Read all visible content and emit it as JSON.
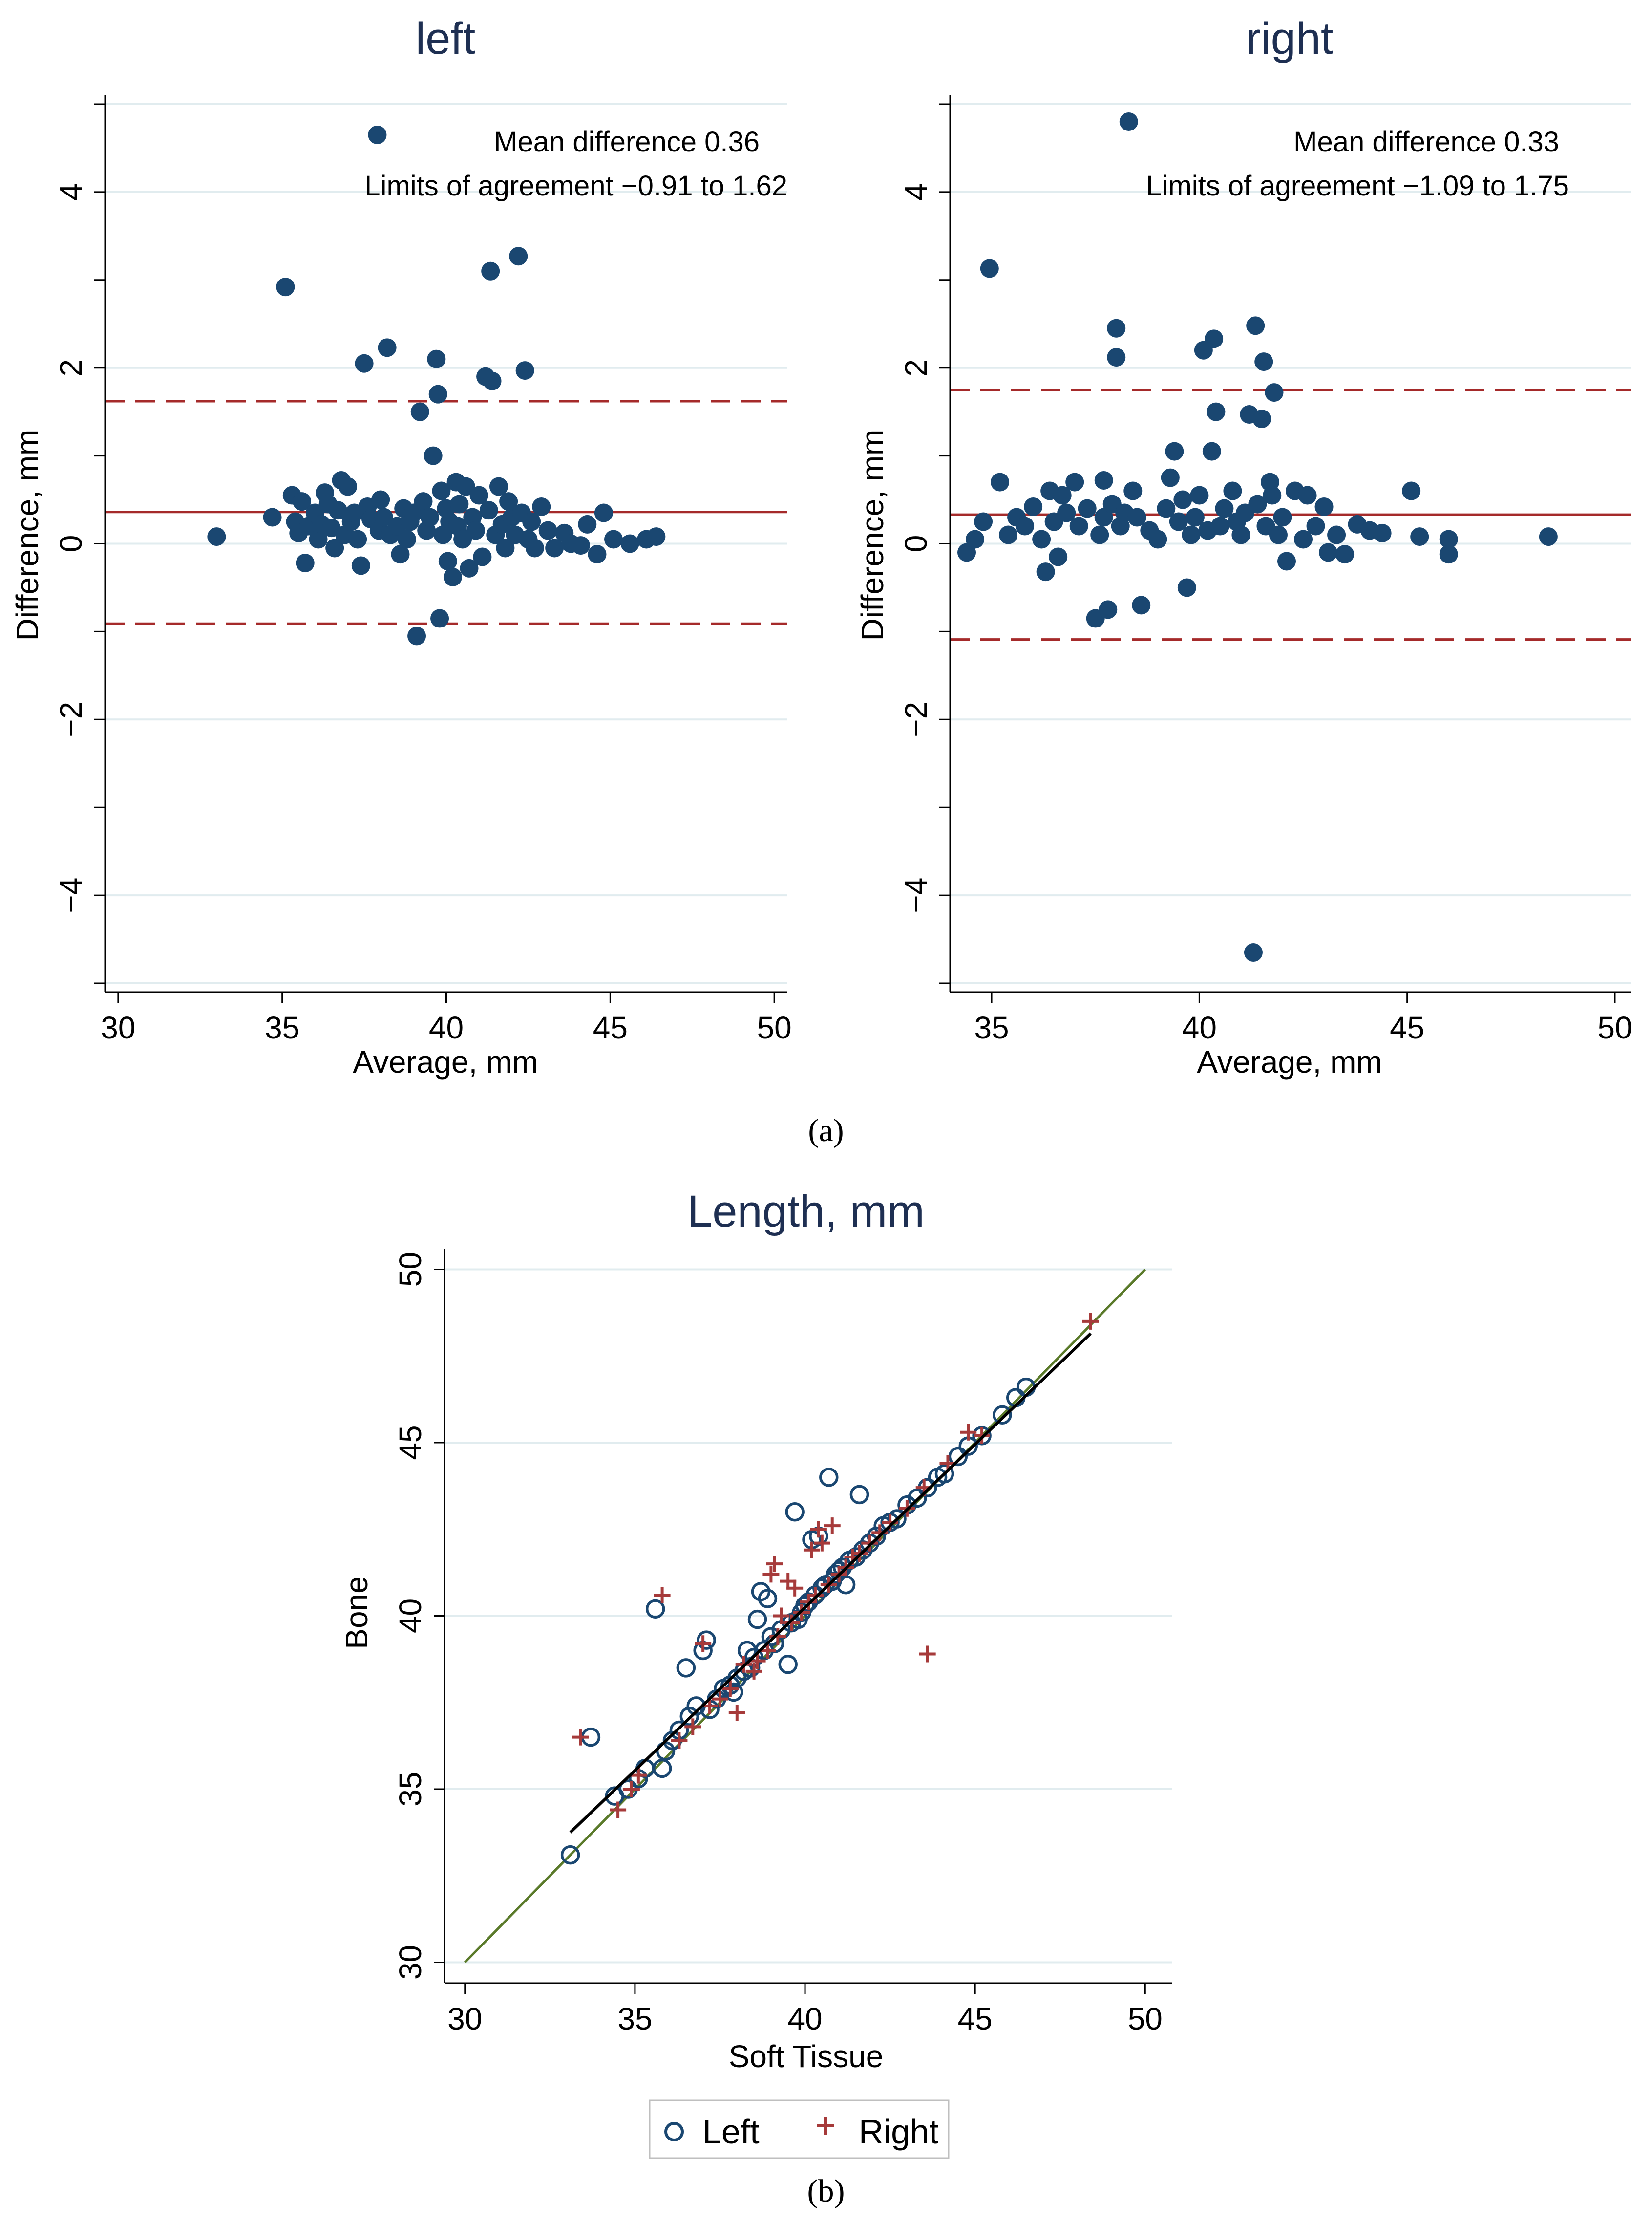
{
  "colors": {
    "point": "#1a4771",
    "ref_line": "#a52a2a",
    "grid": "#e1ecef",
    "identity": "#5a7a2a",
    "fit": "#000000",
    "right_marker": "#a63a3a"
  },
  "captions": {
    "a": "(a)",
    "b": "(b)"
  },
  "chart_data": [
    {
      "type": "scatter",
      "title": "left",
      "xlabel": "Average, mm",
      "ylabel": "Difference, mm",
      "xlim": [
        29.6,
        50.4
      ],
      "ylim": [
        -5.1,
        5.1
      ],
      "xticks": [
        30,
        35,
        40,
        45,
        50
      ],
      "yticks": [
        -4,
        -2,
        0,
        2,
        4
      ],
      "annotations": [
        "Mean difference 0.36",
        "Limits of agreement −0.91 to 1.62"
      ],
      "mean_difference": 0.36,
      "limits_of_agreement": [
        -0.91,
        1.62
      ],
      "points": [
        [
          33.0,
          0.08
        ],
        [
          34.7,
          0.3
        ],
        [
          35.1,
          2.92
        ],
        [
          35.3,
          0.55
        ],
        [
          35.4,
          0.25
        ],
        [
          35.5,
          0.12
        ],
        [
          35.6,
          0.48
        ],
        [
          35.7,
          -0.22
        ],
        [
          35.8,
          0.2
        ],
        [
          36.0,
          0.35
        ],
        [
          36.1,
          0.05
        ],
        [
          36.2,
          0.22
        ],
        [
          36.3,
          0.58
        ],
        [
          36.4,
          0.45
        ],
        [
          36.5,
          0.18
        ],
        [
          36.6,
          -0.05
        ],
        [
          36.7,
          0.38
        ],
        [
          36.8,
          0.72
        ],
        [
          36.9,
          0.1
        ],
        [
          37.0,
          0.65
        ],
        [
          37.1,
          0.25
        ],
        [
          37.2,
          0.35
        ],
        [
          37.3,
          0.05
        ],
        [
          37.4,
          -0.25
        ],
        [
          37.5,
          2.05
        ],
        [
          37.6,
          0.42
        ],
        [
          37.7,
          0.28
        ],
        [
          37.9,
          4.65
        ],
        [
          37.95,
          0.15
        ],
        [
          38.0,
          0.5
        ],
        [
          38.1,
          0.3
        ],
        [
          38.2,
          2.23
        ],
        [
          38.3,
          0.1
        ],
        [
          38.5,
          0.2
        ],
        [
          38.6,
          -0.12
        ],
        [
          38.7,
          0.4
        ],
        [
          38.8,
          0.05
        ],
        [
          38.9,
          0.25
        ],
        [
          39.0,
          0.35
        ],
        [
          39.1,
          -1.05
        ],
        [
          39.2,
          1.5
        ],
        [
          39.3,
          0.48
        ],
        [
          39.4,
          0.15
        ],
        [
          39.5,
          0.3
        ],
        [
          39.6,
          1.0
        ],
        [
          39.7,
          2.1
        ],
        [
          39.75,
          1.7
        ],
        [
          39.8,
          -0.85
        ],
        [
          39.85,
          0.6
        ],
        [
          39.9,
          0.1
        ],
        [
          40.0,
          0.4
        ],
        [
          40.05,
          -0.2
        ],
        [
          40.1,
          0.25
        ],
        [
          40.2,
          -0.38
        ],
        [
          40.3,
          0.7
        ],
        [
          40.35,
          0.2
        ],
        [
          40.4,
          0.45
        ],
        [
          40.5,
          0.05
        ],
        [
          40.6,
          0.65
        ],
        [
          40.7,
          -0.28
        ],
        [
          40.8,
          0.3
        ],
        [
          40.9,
          0.15
        ],
        [
          41.0,
          0.55
        ],
        [
          41.1,
          -0.15
        ],
        [
          41.2,
          1.9
        ],
        [
          41.3,
          0.38
        ],
        [
          41.35,
          3.1
        ],
        [
          41.4,
          1.85
        ],
        [
          41.5,
          0.1
        ],
        [
          41.6,
          0.65
        ],
        [
          41.7,
          0.22
        ],
        [
          41.8,
          -0.05
        ],
        [
          41.9,
          0.48
        ],
        [
          42.0,
          0.3
        ],
        [
          42.1,
          0.1
        ],
        [
          42.2,
          3.27
        ],
        [
          42.3,
          0.35
        ],
        [
          42.4,
          1.97
        ],
        [
          42.5,
          0.05
        ],
        [
          42.6,
          0.25
        ],
        [
          42.7,
          -0.05
        ],
        [
          42.9,
          0.42
        ],
        [
          43.1,
          0.15
        ],
        [
          43.3,
          -0.05
        ],
        [
          43.6,
          0.12
        ],
        [
          43.8,
          0.0
        ],
        [
          44.1,
          -0.02
        ],
        [
          44.3,
          0.22
        ],
        [
          44.6,
          -0.12
        ],
        [
          44.8,
          0.35
        ],
        [
          45.1,
          0.05
        ],
        [
          45.6,
          0.0
        ],
        [
          46.1,
          0.05
        ],
        [
          46.4,
          0.08
        ]
      ]
    },
    {
      "type": "scatter",
      "title": "right",
      "xlabel": "Average, mm",
      "ylabel": "Difference, mm",
      "xlim": [
        34.0,
        50.4
      ],
      "ylim": [
        -5.1,
        5.1
      ],
      "xticks": [
        35,
        40,
        45,
        50
      ],
      "yticks": [
        -4,
        -2,
        0,
        2,
        4
      ],
      "annotations": [
        "Mean difference 0.33",
        "Limits of agreement −1.09 to 1.75"
      ],
      "mean_difference": 0.33,
      "limits_of_agreement": [
        -1.09,
        1.75
      ],
      "points": [
        [
          34.4,
          -0.1
        ],
        [
          34.6,
          0.05
        ],
        [
          34.8,
          0.25
        ],
        [
          34.95,
          3.13
        ],
        [
          35.2,
          0.7
        ],
        [
          35.4,
          0.1
        ],
        [
          35.6,
          0.3
        ],
        [
          35.8,
          0.2
        ],
        [
          36.0,
          0.42
        ],
        [
          36.2,
          0.05
        ],
        [
          36.3,
          -0.32
        ],
        [
          36.4,
          0.6
        ],
        [
          36.5,
          0.25
        ],
        [
          36.6,
          -0.15
        ],
        [
          36.7,
          0.55
        ],
        [
          36.8,
          0.35
        ],
        [
          37.0,
          0.7
        ],
        [
          37.1,
          0.2
        ],
        [
          37.3,
          0.4
        ],
        [
          37.5,
          -0.85
        ],
        [
          37.6,
          0.1
        ],
        [
          37.7,
          0.3
        ],
        [
          37.7,
          0.72
        ],
        [
          37.8,
          -0.75
        ],
        [
          37.9,
          0.45
        ],
        [
          38.0,
          2.45
        ],
        [
          38.0,
          2.12
        ],
        [
          38.1,
          0.2
        ],
        [
          38.2,
          0.35
        ],
        [
          38.3,
          4.8
        ],
        [
          38.4,
          0.6
        ],
        [
          38.5,
          0.3
        ],
        [
          38.6,
          -0.7
        ],
        [
          38.8,
          0.15
        ],
        [
          39.0,
          0.05
        ],
        [
          39.2,
          0.4
        ],
        [
          39.3,
          0.75
        ],
        [
          39.4,
          1.05
        ],
        [
          39.5,
          0.25
        ],
        [
          39.6,
          0.5
        ],
        [
          39.7,
          -0.5
        ],
        [
          39.8,
          0.1
        ],
        [
          39.9,
          0.3
        ],
        [
          40.0,
          0.55
        ],
        [
          40.1,
          2.2
        ],
        [
          40.2,
          0.15
        ],
        [
          40.3,
          1.05
        ],
        [
          40.35,
          2.33
        ],
        [
          40.4,
          1.5
        ],
        [
          40.5,
          0.2
        ],
        [
          40.6,
          0.4
        ],
        [
          40.8,
          0.6
        ],
        [
          40.9,
          0.25
        ],
        [
          41.0,
          0.1
        ],
        [
          41.1,
          0.35
        ],
        [
          41.2,
          1.47
        ],
        [
          41.3,
          -4.65
        ],
        [
          41.35,
          2.48
        ],
        [
          41.4,
          0.45
        ],
        [
          41.5,
          1.42
        ],
        [
          41.55,
          2.07
        ],
        [
          41.6,
          0.2
        ],
        [
          41.7,
          0.7
        ],
        [
          41.75,
          0.55
        ],
        [
          41.8,
          1.72
        ],
        [
          41.9,
          0.1
        ],
        [
          42.0,
          0.3
        ],
        [
          42.1,
          -0.2
        ],
        [
          42.3,
          0.6
        ],
        [
          42.5,
          0.05
        ],
        [
          42.6,
          0.55
        ],
        [
          42.8,
          0.2
        ],
        [
          43.0,
          0.42
        ],
        [
          43.1,
          -0.1
        ],
        [
          43.3,
          0.1
        ],
        [
          43.5,
          -0.12
        ],
        [
          43.8,
          0.22
        ],
        [
          44.1,
          0.15
        ],
        [
          44.4,
          0.12
        ],
        [
          45.1,
          0.6
        ],
        [
          45.3,
          0.08
        ],
        [
          46.0,
          0.05
        ],
        [
          46.0,
          -0.12
        ],
        [
          48.4,
          0.08
        ]
      ]
    },
    {
      "type": "scatter",
      "title": "Length, mm",
      "xlabel": "Soft Tissue",
      "ylabel": "Bone",
      "xlim": [
        29.4,
        50.8
      ],
      "ylim": [
        29.4,
        50.6
      ],
      "xticks": [
        30,
        35,
        40,
        45,
        50
      ],
      "yticks": [
        30,
        35,
        40,
        45,
        50
      ],
      "legend": [
        "Left",
        "Right"
      ],
      "identity_line": [
        [
          30,
          30
        ],
        [
          50,
          50
        ]
      ],
      "fit_line": [
        [
          33.1,
          33.75
        ],
        [
          48.4,
          48.15
        ]
      ],
      "series": [
        {
          "name": "Left",
          "marker": "circle",
          "points": [
            [
              33.1,
              33.1
            ],
            [
              33.7,
              36.5
            ],
            [
              34.4,
              34.8
            ],
            [
              34.8,
              35.0
            ],
            [
              35.1,
              35.3
            ],
            [
              35.3,
              35.6
            ],
            [
              35.6,
              40.2
            ],
            [
              35.8,
              35.6
            ],
            [
              35.9,
              36.1
            ],
            [
              36.1,
              36.4
            ],
            [
              36.3,
              36.7
            ],
            [
              36.5,
              38.5
            ],
            [
              36.6,
              37.1
            ],
            [
              36.8,
              37.4
            ],
            [
              37.0,
              39.0
            ],
            [
              37.1,
              39.3
            ],
            [
              37.2,
              37.3
            ],
            [
              37.4,
              37.6
            ],
            [
              37.6,
              37.9
            ],
            [
              37.8,
              38.0
            ],
            [
              37.9,
              37.8
            ],
            [
              38.0,
              38.2
            ],
            [
              38.2,
              38.4
            ],
            [
              38.3,
              39.0
            ],
            [
              38.4,
              38.5
            ],
            [
              38.5,
              38.8
            ],
            [
              38.6,
              39.9
            ],
            [
              38.7,
              40.7
            ],
            [
              38.8,
              39.0
            ],
            [
              38.9,
              40.5
            ],
            [
              39.0,
              39.4
            ],
            [
              39.1,
              39.2
            ],
            [
              39.3,
              39.6
            ],
            [
              39.5,
              38.6
            ],
            [
              39.6,
              39.8
            ],
            [
              39.7,
              43.0
            ],
            [
              39.8,
              39.9
            ],
            [
              39.9,
              40.1
            ],
            [
              40.0,
              40.3
            ],
            [
              40.1,
              40.4
            ],
            [
              40.2,
              42.2
            ],
            [
              40.3,
              40.6
            ],
            [
              40.4,
              42.3
            ],
            [
              40.5,
              40.8
            ],
            [
              40.6,
              40.9
            ],
            [
              40.7,
              44.0
            ],
            [
              40.8,
              41.0
            ],
            [
              40.9,
              41.2
            ],
            [
              41.0,
              41.3
            ],
            [
              41.1,
              41.4
            ],
            [
              41.2,
              40.9
            ],
            [
              41.3,
              41.6
            ],
            [
              41.5,
              41.7
            ],
            [
              41.6,
              43.5
            ],
            [
              41.7,
              41.9
            ],
            [
              41.9,
              42.1
            ],
            [
              42.1,
              42.3
            ],
            [
              42.3,
              42.6
            ],
            [
              42.5,
              42.7
            ],
            [
              42.7,
              42.8
            ],
            [
              43.0,
              43.2
            ],
            [
              43.3,
              43.4
            ],
            [
              43.6,
              43.7
            ],
            [
              43.9,
              44.0
            ],
            [
              44.1,
              44.1
            ],
            [
              44.5,
              44.6
            ],
            [
              44.8,
              44.9
            ],
            [
              45.2,
              45.2
            ],
            [
              45.8,
              45.8
            ],
            [
              46.2,
              46.3
            ],
            [
              46.5,
              46.6
            ]
          ]
        },
        {
          "name": "Right",
          "marker": "plus",
          "points": [
            [
              34.5,
              34.4
            ],
            [
              34.9,
              35.0
            ],
            [
              35.1,
              35.4
            ],
            [
              33.4,
              36.5
            ],
            [
              35.8,
              40.6
            ],
            [
              36.3,
              36.4
            ],
            [
              36.7,
              36.8
            ],
            [
              37.0,
              39.2
            ],
            [
              37.2,
              37.4
            ],
            [
              37.5,
              37.6
            ],
            [
              37.8,
              37.9
            ],
            [
              38.0,
              37.2
            ],
            [
              38.2,
              38.6
            ],
            [
              38.5,
              38.4
            ],
            [
              38.6,
              38.7
            ],
            [
              38.9,
              39.0
            ],
            [
              39.0,
              41.2
            ],
            [
              39.1,
              41.5
            ],
            [
              39.2,
              39.4
            ],
            [
              39.3,
              40.0
            ],
            [
              39.5,
              41.0
            ],
            [
              39.6,
              39.8
            ],
            [
              39.7,
              40.8
            ],
            [
              39.9,
              40.1
            ],
            [
              40.1,
              40.4
            ],
            [
              40.2,
              41.9
            ],
            [
              40.3,
              40.6
            ],
            [
              40.4,
              42.5
            ],
            [
              40.5,
              42.1
            ],
            [
              40.7,
              40.9
            ],
            [
              40.8,
              42.6
            ],
            [
              41.0,
              41.2
            ],
            [
              41.2,
              41.4
            ],
            [
              41.4,
              41.7
            ],
            [
              41.6,
              41.8
            ],
            [
              41.9,
              42.1
            ],
            [
              42.2,
              42.4
            ],
            [
              42.5,
              42.7
            ],
            [
              43.6,
              38.9
            ],
            [
              43.0,
              43.1
            ],
            [
              43.5,
              43.7
            ],
            [
              44.2,
              44.4
            ],
            [
              44.8,
              45.3
            ],
            [
              45.2,
              45.2
            ],
            [
              48.4,
              48.5
            ]
          ]
        }
      ]
    }
  ]
}
